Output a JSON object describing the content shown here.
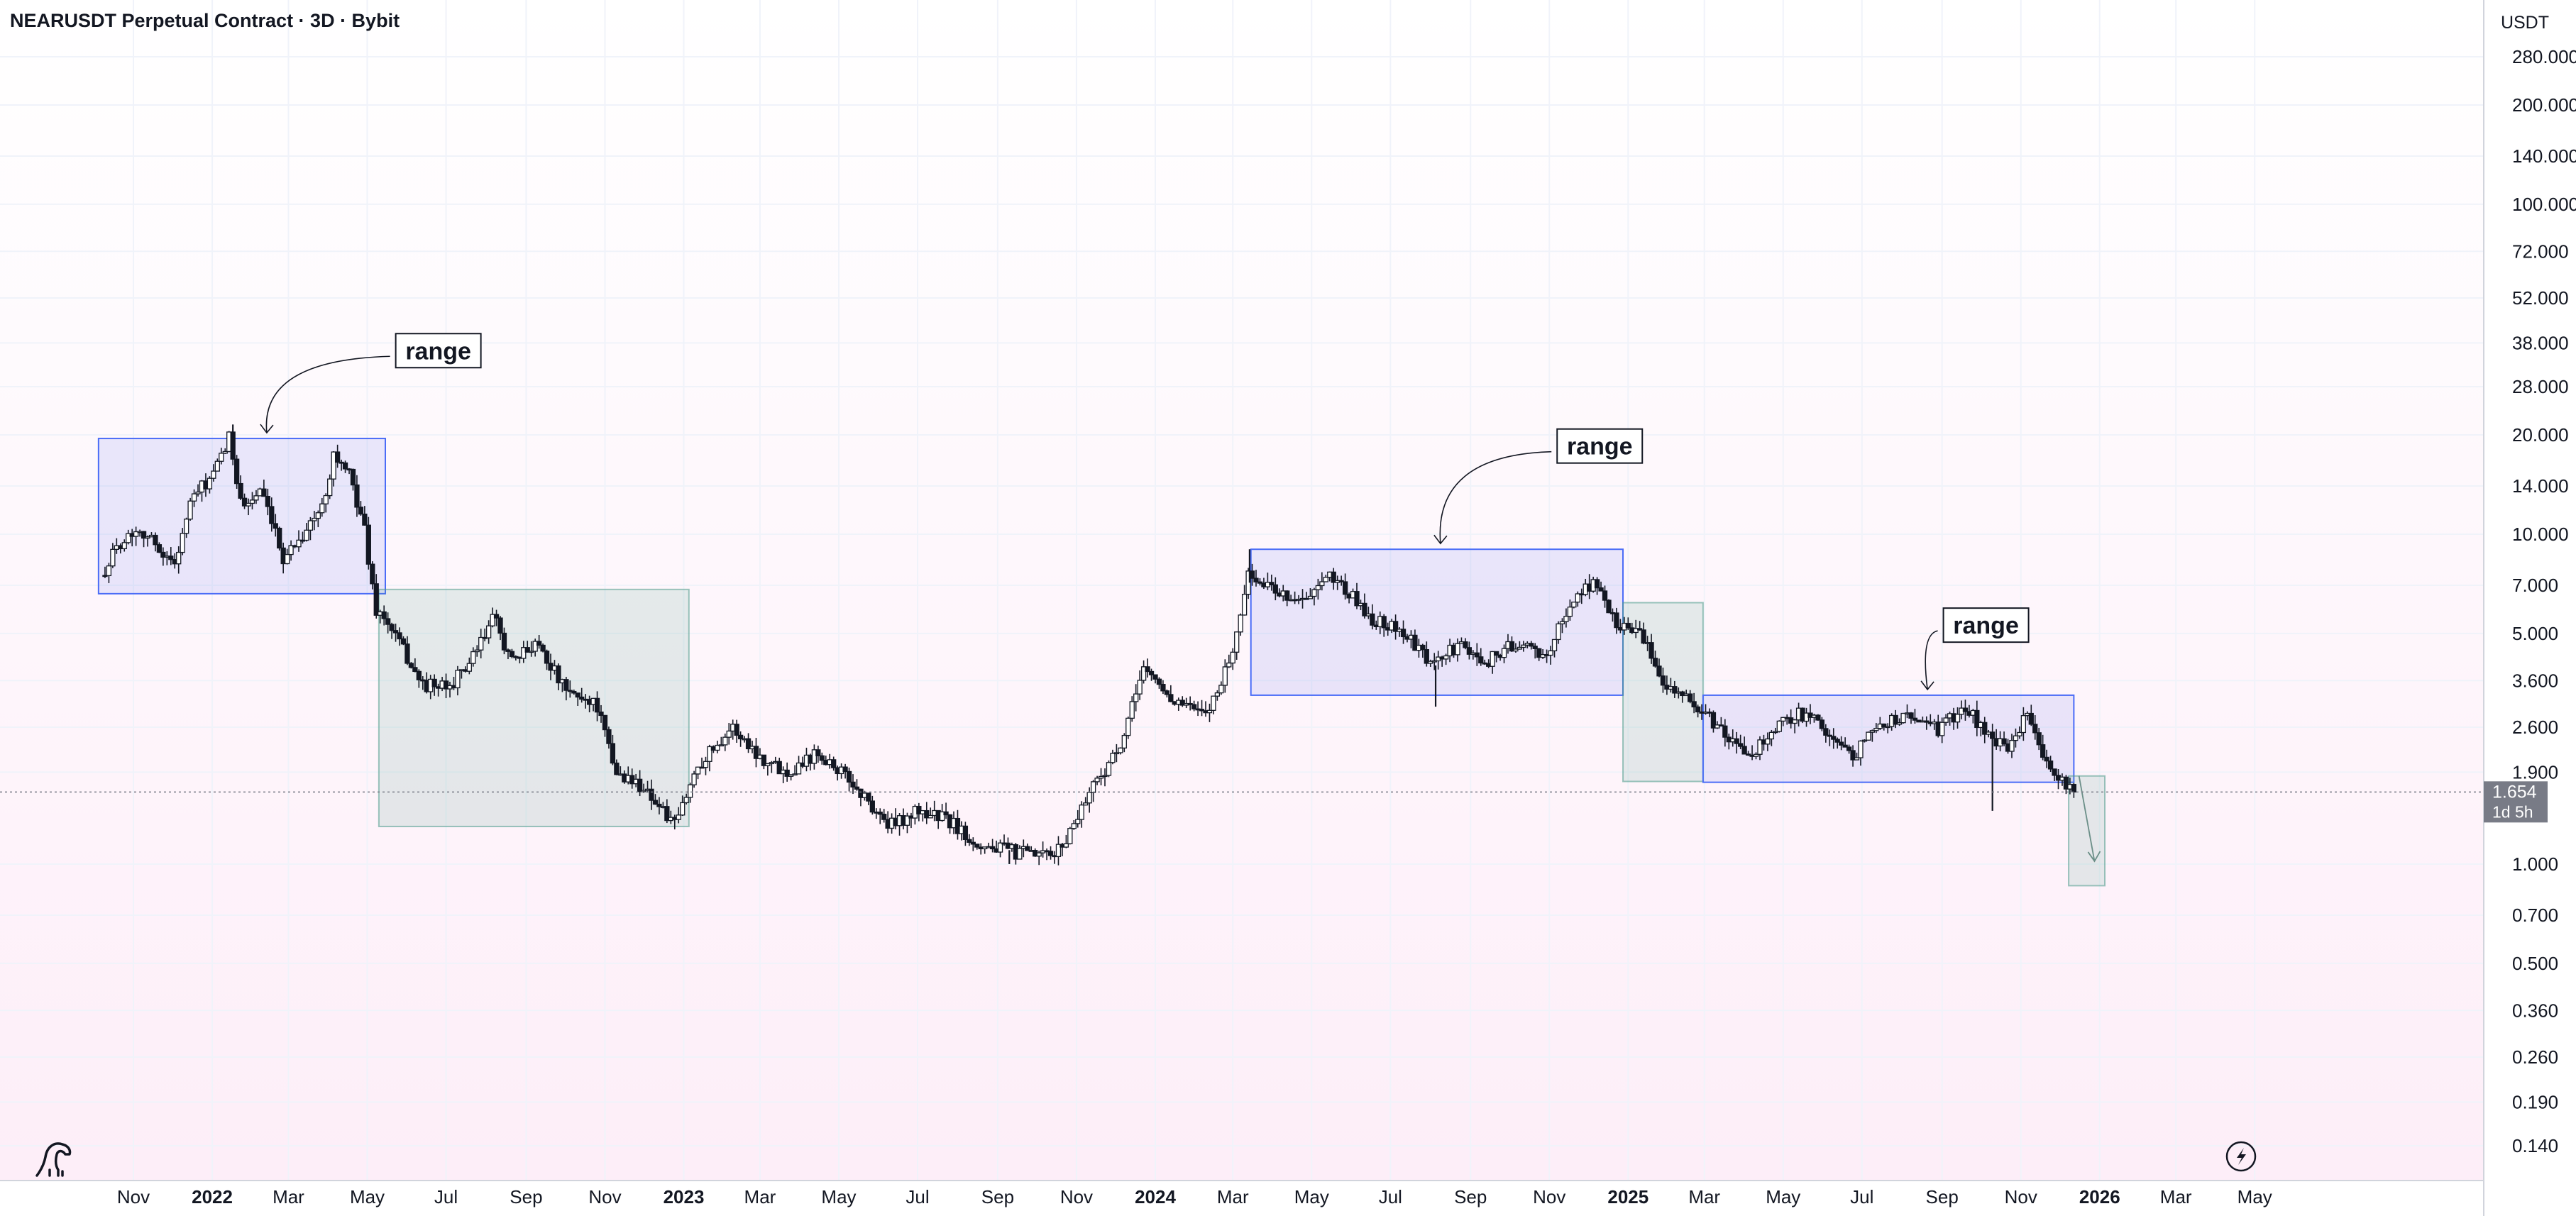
{
  "header": {
    "title": "NEARUSDT Perpetual Contract · 3D · Bybit",
    "currency": "USDT"
  },
  "price_tag": {
    "price": "1.654",
    "countdown": "1d 5h"
  },
  "annotations": [
    "range",
    "range",
    "range"
  ],
  "chart_data": {
    "type": "candlestick",
    "title": "NEARUSDT Perpetual Contract · 3D · Bybit",
    "y_scale": "log",
    "ylim": [
      0.11,
      330
    ],
    "y_unit": "USDT",
    "y_ticks": [
      "280.000",
      "200.000",
      "140.000",
      "100.000",
      "72.000",
      "52.000",
      "38.000",
      "28.000",
      "20.000",
      "14.000",
      "10.000",
      "7.000",
      "5.000",
      "3.600",
      "2.600",
      "1.900",
      "1.000",
      "0.700",
      "0.500",
      "0.360",
      "0.260",
      "0.190",
      "0.140"
    ],
    "x_ticks": [
      {
        "label": "Nov",
        "date": "2021-11-01",
        "bold": false
      },
      {
        "label": "2022",
        "date": "2022-01-01",
        "bold": true
      },
      {
        "label": "Mar",
        "date": "2022-03-01",
        "bold": false
      },
      {
        "label": "May",
        "date": "2022-05-01",
        "bold": false
      },
      {
        "label": "Jul",
        "date": "2022-07-01",
        "bold": false
      },
      {
        "label": "Sep",
        "date": "2022-09-01",
        "bold": false
      },
      {
        "label": "Nov",
        "date": "2022-11-01",
        "bold": false
      },
      {
        "label": "2023",
        "date": "2023-01-01",
        "bold": true
      },
      {
        "label": "Mar",
        "date": "2023-03-01",
        "bold": false
      },
      {
        "label": "May",
        "date": "2023-05-01",
        "bold": false
      },
      {
        "label": "Jul",
        "date": "2023-07-01",
        "bold": false
      },
      {
        "label": "Sep",
        "date": "2023-09-01",
        "bold": false
      },
      {
        "label": "Nov",
        "date": "2023-11-01",
        "bold": false
      },
      {
        "label": "2024",
        "date": "2024-01-01",
        "bold": true
      },
      {
        "label": "Mar",
        "date": "2024-03-01",
        "bold": false
      },
      {
        "label": "May",
        "date": "2024-05-01",
        "bold": false
      },
      {
        "label": "Jul",
        "date": "2024-07-01",
        "bold": false
      },
      {
        "label": "Sep",
        "date": "2024-09-01",
        "bold": false
      },
      {
        "label": "Nov",
        "date": "2024-11-01",
        "bold": false
      },
      {
        "label": "2025",
        "date": "2025-01-01",
        "bold": true
      },
      {
        "label": "Mar",
        "date": "2025-03-01",
        "bold": false
      },
      {
        "label": "May",
        "date": "2025-05-01",
        "bold": false
      },
      {
        "label": "Jul",
        "date": "2025-07-01",
        "bold": false
      },
      {
        "label": "Sep",
        "date": "2025-09-01",
        "bold": false
      },
      {
        "label": "Nov",
        "date": "2025-11-01",
        "bold": false
      },
      {
        "label": "2026",
        "date": "2026-01-01",
        "bold": true
      },
      {
        "label": "Mar",
        "date": "2026-03-01",
        "bold": false
      },
      {
        "label": "May",
        "date": "2026-05-01",
        "bold": false
      }
    ],
    "last_price": 1.654,
    "price_path": [
      [
        "2021-10-10",
        7.5
      ],
      [
        "2021-10-25",
        9.5
      ],
      [
        "2021-11-08",
        10.5
      ],
      [
        "2021-11-25",
        9.0
      ],
      [
        "2021-12-05",
        8.0
      ],
      [
        "2021-12-20",
        13.0
      ],
      [
        "2022-01-05",
        15.0
      ],
      [
        "2022-01-17",
        19.5
      ],
      [
        "2022-01-28",
        12.0
      ],
      [
        "2022-02-10",
        13.5
      ],
      [
        "2022-02-28",
        8.5
      ],
      [
        "2022-03-15",
        10.0
      ],
      [
        "2022-03-30",
        12.0
      ],
      [
        "2022-04-08",
        17.5
      ],
      [
        "2022-04-20",
        15.0
      ],
      [
        "2022-05-01",
        11.0
      ],
      [
        "2022-05-10",
        6.0
      ],
      [
        "2022-05-25",
        5.0
      ],
      [
        "2022-06-15",
        3.5
      ],
      [
        "2022-07-05",
        3.4
      ],
      [
        "2022-07-25",
        4.2
      ],
      [
        "2022-08-10",
        5.6
      ],
      [
        "2022-08-25",
        4.0
      ],
      [
        "2022-09-12",
        4.8
      ],
      [
        "2022-10-05",
        3.3
      ],
      [
        "2022-10-28",
        3.1
      ],
      [
        "2022-11-12",
        1.9
      ],
      [
        "2022-12-05",
        1.7
      ],
      [
        "2022-12-28",
        1.3
      ],
      [
        "2023-01-15",
        2.0
      ],
      [
        "2023-02-10",
        2.6
      ],
      [
        "2023-03-05",
        2.1
      ],
      [
        "2023-03-25",
        1.9
      ],
      [
        "2023-04-18",
        2.2
      ],
      [
        "2023-05-12",
        1.8
      ],
      [
        "2023-06-12",
        1.3
      ],
      [
        "2023-07-05",
        1.45
      ],
      [
        "2023-07-25",
        1.38
      ],
      [
        "2023-08-20",
        1.15
      ],
      [
        "2023-09-20",
        1.08
      ],
      [
        "2023-10-15",
        1.05
      ],
      [
        "2023-10-25",
        1.15
      ],
      [
        "2023-11-15",
        1.7
      ],
      [
        "2023-12-10",
        2.3
      ],
      [
        "2023-12-25",
        4.0
      ],
      [
        "2024-01-15",
        3.2
      ],
      [
        "2024-02-12",
        2.8
      ],
      [
        "2024-03-05",
        4.5
      ],
      [
        "2024-03-15",
        7.5
      ],
      [
        "2024-04-05",
        6.8
      ],
      [
        "2024-04-28",
        6.2
      ],
      [
        "2024-05-20",
        7.5
      ],
      [
        "2024-06-20",
        5.5
      ],
      [
        "2024-07-10",
        5.2
      ],
      [
        "2024-08-05",
        4.0
      ],
      [
        "2024-08-25",
        4.6
      ],
      [
        "2024-09-15",
        4.1
      ],
      [
        "2024-10-10",
        4.7
      ],
      [
        "2024-10-30",
        4.2
      ],
      [
        "2024-11-25",
        6.5
      ],
      [
        "2024-12-08",
        7.2
      ],
      [
        "2024-12-25",
        5.4
      ],
      [
        "2025-01-10",
        5.2
      ],
      [
        "2025-02-01",
        3.6
      ],
      [
        "2025-02-25",
        3.0
      ],
      [
        "2025-03-15",
        2.6
      ],
      [
        "2025-04-05",
        2.1
      ],
      [
        "2025-04-25",
        2.5
      ],
      [
        "2025-05-15",
        2.9
      ],
      [
        "2025-06-05",
        2.6
      ],
      [
        "2025-06-25",
        2.1
      ],
      [
        "2025-07-20",
        2.7
      ],
      [
        "2025-08-12",
        2.8
      ],
      [
        "2025-09-01",
        2.55
      ],
      [
        "2025-09-22",
        3.0
      ],
      [
        "2025-10-12",
        2.4
      ],
      [
        "2025-10-25",
        2.2
      ],
      [
        "2025-11-08",
        2.9
      ],
      [
        "2025-11-22",
        2.05
      ],
      [
        "2025-12-05",
        1.78
      ],
      [
        "2025-12-14",
        1.654
      ]
    ],
    "wicks": [
      {
        "date": "2025-10-10",
        "low": 1.45
      },
      {
        "date": "2022-01-17",
        "high": 21.5
      },
      {
        "date": "2024-03-14",
        "high": 9.0
      },
      {
        "date": "2024-08-05",
        "low": 3.0
      },
      {
        "date": "2023-09-10",
        "low": 1.0
      }
    ],
    "boxes": [
      {
        "kind": "range",
        "start": "2021-10-05",
        "end": "2022-05-15",
        "low": 6.6,
        "high": 19.5,
        "color": "#4a6cf7"
      },
      {
        "kind": "zone",
        "start": "2022-05-10",
        "end": "2023-01-05",
        "low": 1.3,
        "high": 6.8,
        "color": "#4c9a8a"
      },
      {
        "kind": "range",
        "start": "2024-03-15",
        "end": "2024-12-28",
        "low": 3.25,
        "high": 9.0,
        "color": "#4a6cf7"
      },
      {
        "kind": "zone",
        "start": "2024-12-28",
        "end": "2025-02-28",
        "low": 1.78,
        "high": 6.2,
        "color": "#4c9a8a"
      },
      {
        "kind": "range",
        "start": "2025-02-28",
        "end": "2025-12-12",
        "low": 1.77,
        "high": 3.25,
        "color": "#4a6cf7"
      },
      {
        "kind": "zone",
        "start": "2025-12-08",
        "end": "2026-01-05",
        "low": 0.86,
        "high": 1.85,
        "color": "#4c9a8a"
      }
    ],
    "labels": [
      {
        "text": "range",
        "date": "2022-06-25",
        "price": 36.0
      },
      {
        "text": "range",
        "date": "2024-12-10",
        "price": 18.5
      },
      {
        "text": "range",
        "date": "2025-10-05",
        "price": 5.3
      }
    ]
  }
}
